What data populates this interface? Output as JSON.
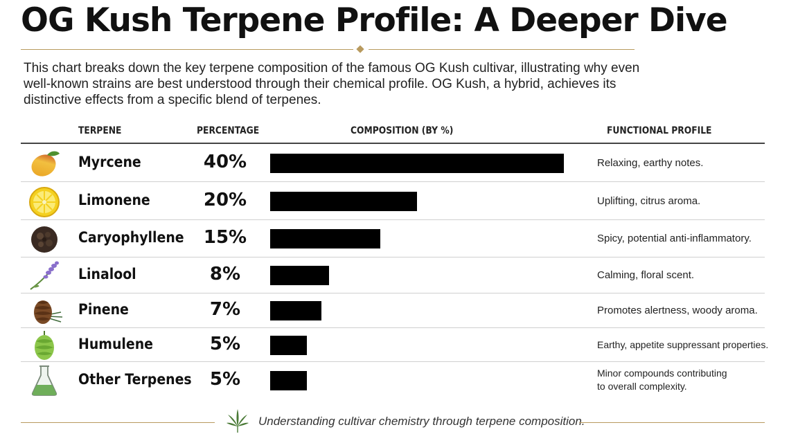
{
  "title": "OG Kush Terpene Profile: A Deeper Dive",
  "intro": "This chart breaks down the key terpene composition of the famous OG Kush cultivar, illustrating why even well-known strains are best understood through their chemical profile. OG Kush, a hybrid, achieves its distinctive effects from a specific blend of terpenes.",
  "headers": {
    "terpene": "TERPENE",
    "percentage": "PERCENTAGE",
    "composition": "COMPOSITION (BY %)",
    "profile": "FUNCTIONAL PROFILE"
  },
  "footer": "Understanding cultivar chemistry through terpene composition.",
  "colors": {
    "accent": "#b89a5e",
    "bar": "#000000",
    "separator": "#cfcfcf"
  },
  "chart_data": {
    "type": "bar",
    "orientation": "horizontal",
    "categories": [
      "Myrcene",
      "Limonene",
      "Caryophyllene",
      "Linalool",
      "Pinene",
      "Humulene",
      "Other Terpenes"
    ],
    "values": [
      40,
      20,
      15,
      8,
      7,
      5,
      5
    ],
    "value_labels": [
      "40%",
      "20%",
      "15%",
      "8%",
      "7%",
      "5%",
      "5%"
    ],
    "xlim": [
      0,
      40
    ],
    "unit": "%",
    "profiles": [
      "Relaxing, earthy notes.",
      "Uplifting, citrus aroma.",
      "Spicy, potential anti-inflammatory.",
      "Calming, floral scent.",
      "Promotes alertness, woody aroma.",
      "Earthy, appetite suppressant properties.",
      "Minor compounds contributing\nto overall complexity."
    ],
    "icons": [
      "mango-icon",
      "lemon-icon",
      "peppercorn-icon",
      "lavender-icon",
      "pinecone-icon",
      "hops-icon",
      "flask-icon"
    ],
    "grid": false
  }
}
